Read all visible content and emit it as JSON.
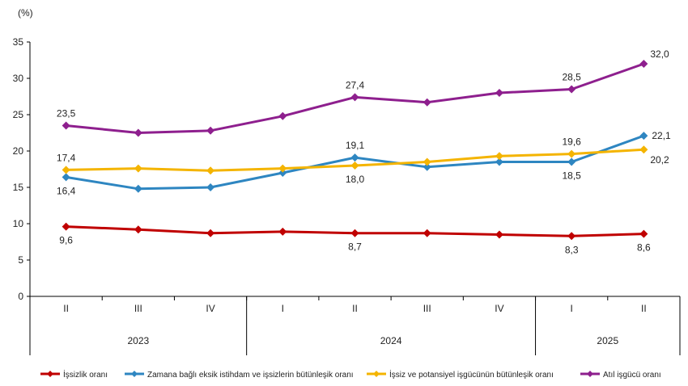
{
  "chart_data": {
    "type": "line",
    "ylabel": "(%)",
    "ylim": [
      0,
      35
    ],
    "yticks": [
      0,
      5,
      10,
      15,
      20,
      25,
      30,
      35
    ],
    "grid": false,
    "legend": "bottom",
    "categories": [
      "II",
      "III",
      "IV",
      "I",
      "II",
      "III",
      "IV",
      "I",
      "II"
    ],
    "years": [
      {
        "label": "2023",
        "from": 0,
        "to": 2
      },
      {
        "label": "2024",
        "from": 3,
        "to": 6
      },
      {
        "label": "2025",
        "from": 7,
        "to": 8
      }
    ],
    "series": [
      {
        "name": "İşsizlik oranı",
        "color": "#c00000",
        "values": [
          9.6,
          9.2,
          8.7,
          8.9,
          8.7,
          8.7,
          8.5,
          8.3,
          8.6
        ],
        "labels": [
          {
            "i": 0,
            "text": "9,6",
            "pos": "below"
          },
          {
            "i": 4,
            "text": "8,7",
            "pos": "below"
          },
          {
            "i": 7,
            "text": "8,3",
            "pos": "below"
          },
          {
            "i": 8,
            "text": "8,6",
            "pos": "below"
          }
        ]
      },
      {
        "name": "Zamana bağlı eksik istihdam ve işsizlerin bütünleşik oranı",
        "color": "#2e86c1",
        "values": [
          16.4,
          14.8,
          15.0,
          17.0,
          19.1,
          17.8,
          18.5,
          18.5,
          22.1
        ],
        "labels": [
          {
            "i": 0,
            "text": "16,4",
            "pos": "below"
          },
          {
            "i": 4,
            "text": "19,1",
            "pos": "above"
          },
          {
            "i": 7,
            "text": "18,5",
            "pos": "below"
          },
          {
            "i": 8,
            "text": "22,1",
            "pos": "right"
          }
        ]
      },
      {
        "name": "İşsiz ve potansiyel işgücünün bütünleşik oranı",
        "color": "#f4b400",
        "values": [
          17.4,
          17.6,
          17.3,
          17.6,
          18.0,
          18.5,
          19.3,
          19.6,
          20.2
        ],
        "labels": [
          {
            "i": 0,
            "text": "17,4",
            "pos": "above"
          },
          {
            "i": 4,
            "text": "18,0",
            "pos": "below"
          },
          {
            "i": 7,
            "text": "19,6",
            "pos": "above"
          },
          {
            "i": 8,
            "text": "20,2",
            "pos": "belowright"
          }
        ]
      },
      {
        "name": "Atıl işgücü oranı",
        "color": "#8e1f8e",
        "values": [
          23.5,
          22.5,
          22.8,
          24.8,
          27.4,
          26.7,
          28.0,
          28.5,
          32.0
        ],
        "labels": [
          {
            "i": 0,
            "text": "23,5",
            "pos": "above"
          },
          {
            "i": 4,
            "text": "27,4",
            "pos": "above"
          },
          {
            "i": 7,
            "text": "28,5",
            "pos": "above"
          },
          {
            "i": 8,
            "text": "32,0",
            "pos": "aboveright"
          }
        ]
      }
    ]
  }
}
